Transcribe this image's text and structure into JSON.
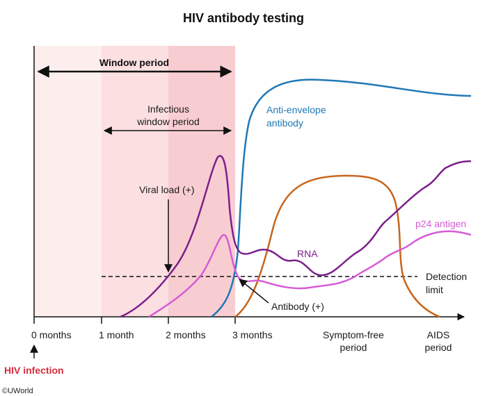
{
  "title": "HIV antibody testing",
  "window_period": {
    "label": "Window period"
  },
  "infectious_window": {
    "line1": "Infectious",
    "line2": "window period"
  },
  "annotations": {
    "viral_load": "Viral load (+)",
    "antibody": "Antibody (+)",
    "detection_line1": "Detection",
    "detection_line2": "limit"
  },
  "curves": {
    "anti_envelope": {
      "line1": "Anti-envelope",
      "line2": "antibody",
      "color": "#1f78b4"
    },
    "rna": {
      "label": "RNA",
      "color": "#7b1f8a"
    },
    "p24": {
      "label": "p24 antigen",
      "color": "#d65ad6"
    },
    "antibody_orange": {
      "color": "#c8641a"
    }
  },
  "x_axis": {
    "ticks": [
      "0 months",
      "1 month",
      "2 months",
      "3 months"
    ],
    "symptom_free": {
      "line1": "Symptom-free",
      "line2": "period"
    },
    "aids": {
      "line1": "AIDS",
      "line2": "period"
    }
  },
  "hiv_infection": {
    "label": "HIV infection",
    "color": "#d62b3a"
  },
  "colors": {
    "shade_light": "#fdeeee",
    "shade_mid": "#fbdfe1",
    "shade_dark": "#f8cdd2"
  },
  "copyright": "©UWorld"
}
